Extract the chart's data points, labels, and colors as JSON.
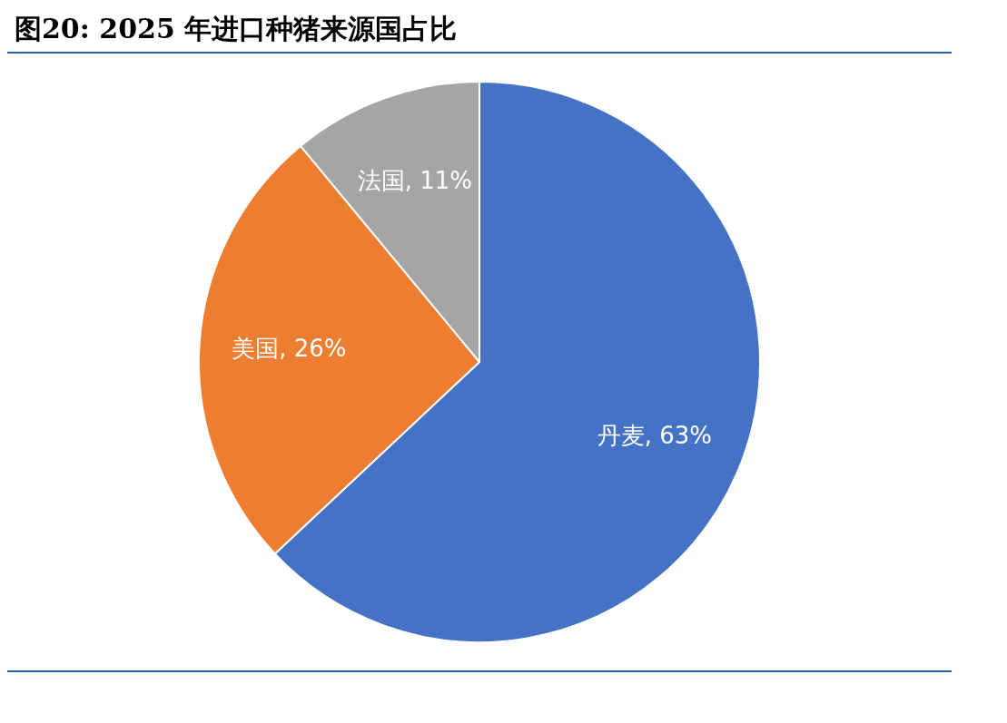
{
  "chart_data": {
    "type": "pie",
    "title": "图20: 2025 年进口种猪来源国占比",
    "categories": [
      "丹麦",
      "美国",
      "法国"
    ],
    "values": [
      63,
      26,
      11
    ],
    "colors": [
      "#4472c4",
      "#ed7d31",
      "#a5a5a5"
    ],
    "value_labels": [
      ", 63%",
      ", 26%",
      ", 11%"
    ],
    "legend": false
  }
}
